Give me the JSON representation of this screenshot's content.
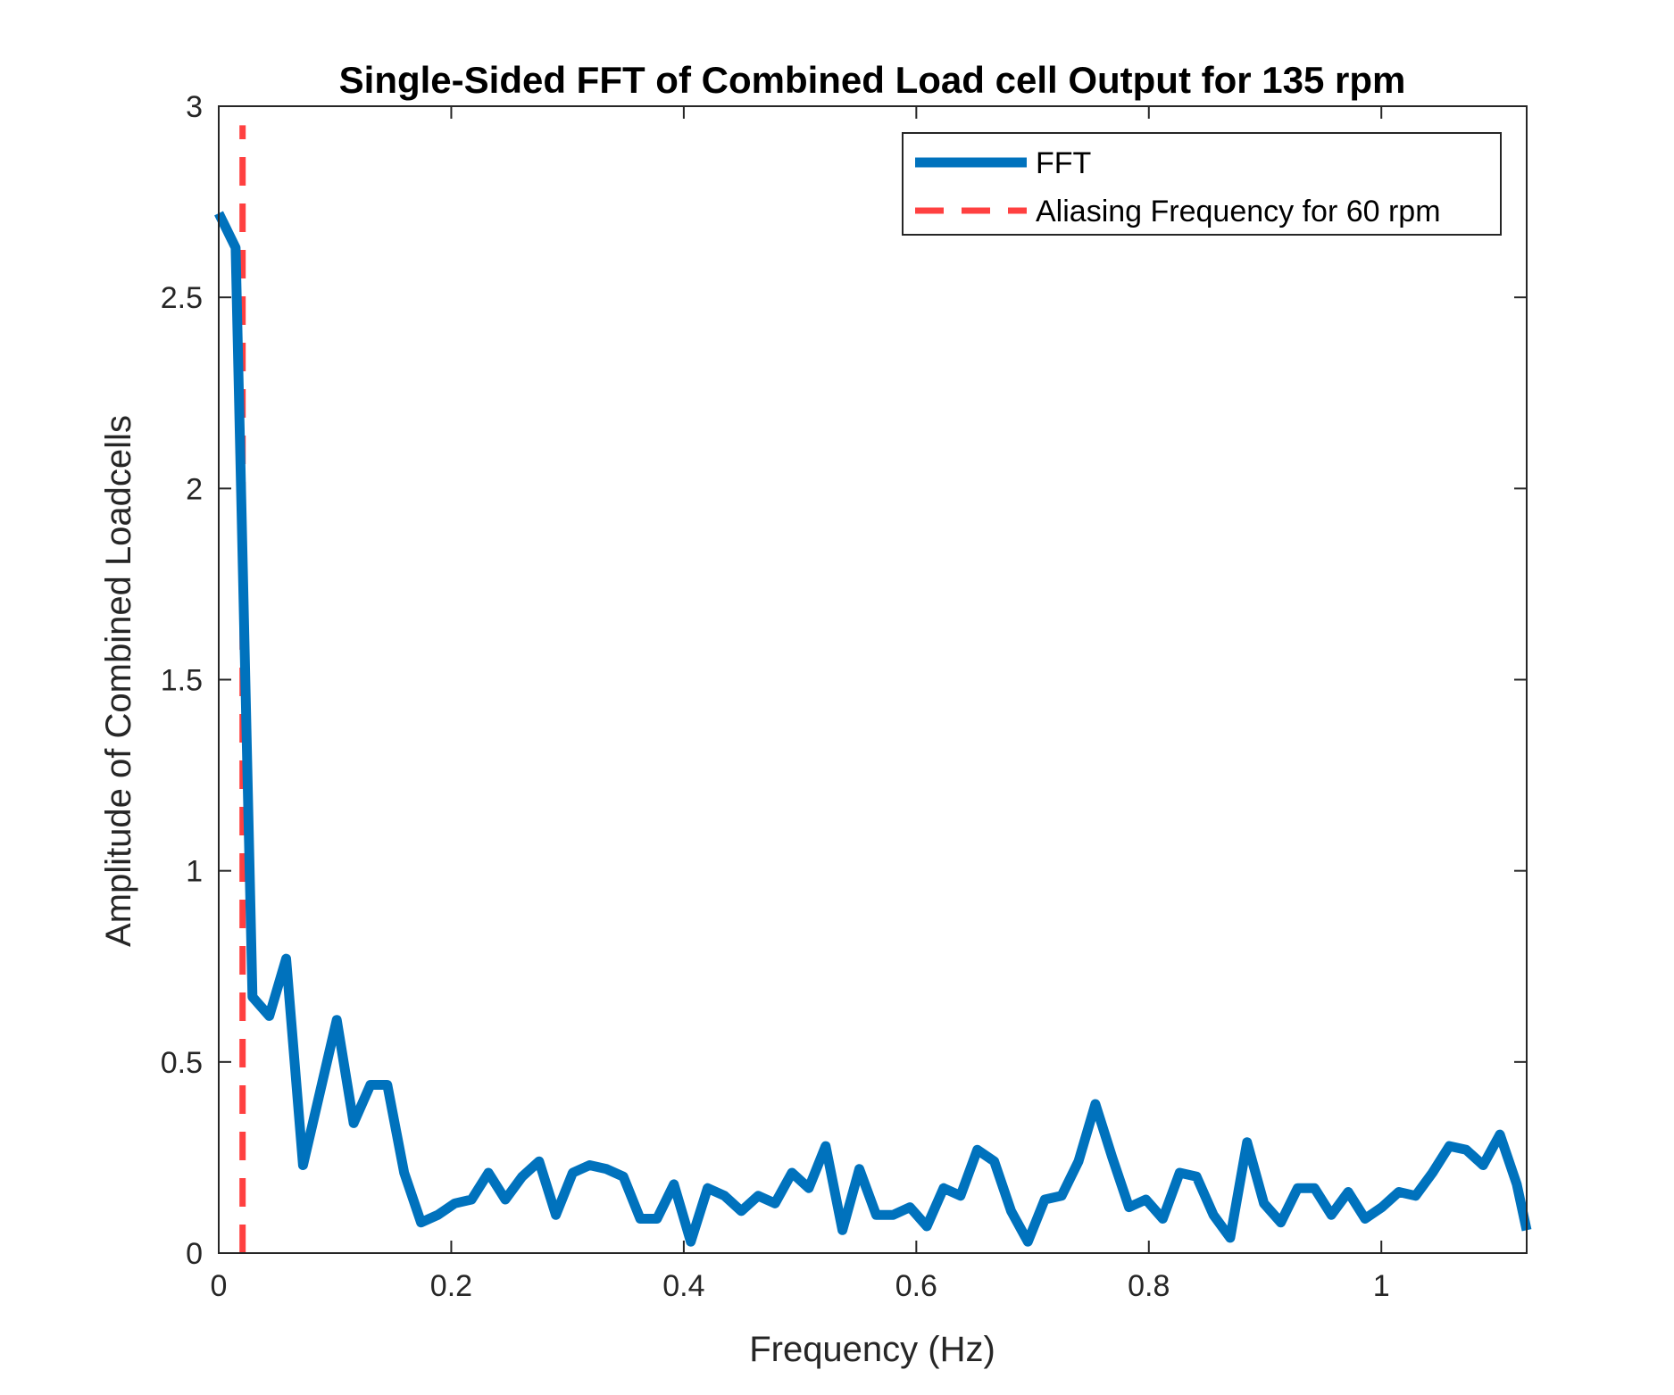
{
  "chart_data": {
    "type": "line",
    "title": "Single-Sided FFT of Combined Load cell Output for 135 rpm",
    "xlabel": "Frequency (Hz)",
    "ylabel": "Amplitude of Combined Loadcells",
    "xlim": [
      0,
      1.125
    ],
    "ylim": [
      0,
      3
    ],
    "xticks": [
      0,
      0.2,
      0.4,
      0.6,
      0.8,
      1
    ],
    "xtick_labels": [
      "0",
      "0.2",
      "0.4",
      "0.6",
      "0.8",
      "1"
    ],
    "yticks": [
      0,
      0.5,
      1,
      1.5,
      2,
      2.5,
      3
    ],
    "ytick_labels": [
      "0",
      "0.5",
      "1",
      "1.5",
      "2",
      "2.5",
      "3"
    ],
    "grid": false,
    "legend_position": "top-right",
    "series": [
      {
        "name": "FFT",
        "style": "solid",
        "color": "#0072BD",
        "x": [
          0,
          0.0145,
          0.029,
          0.0435,
          0.058,
          0.0725,
          0.087,
          0.1015,
          0.116,
          0.1305,
          0.145,
          0.1595,
          0.174,
          0.1885,
          0.203,
          0.2175,
          0.232,
          0.2465,
          0.261,
          0.2755,
          0.29,
          0.3045,
          0.319,
          0.3335,
          0.348,
          0.3625,
          0.377,
          0.3915,
          0.406,
          0.4205,
          0.435,
          0.4495,
          0.464,
          0.4785,
          0.493,
          0.5075,
          0.522,
          0.5365,
          0.551,
          0.5655,
          0.58,
          0.5945,
          0.609,
          0.6235,
          0.638,
          0.6525,
          0.667,
          0.6815,
          0.696,
          0.7105,
          0.725,
          0.7395,
          0.754,
          0.7685,
          0.783,
          0.7975,
          0.812,
          0.8265,
          0.841,
          0.8555,
          0.87,
          0.8845,
          0.899,
          0.9135,
          0.928,
          0.9425,
          0.957,
          0.9715,
          0.986,
          1.0005,
          1.015,
          1.0295,
          1.044,
          1.0585,
          1.073,
          1.0875,
          1.102,
          1.1165,
          1.125
        ],
        "y": [
          2.72,
          2.63,
          0.67,
          0.62,
          0.77,
          0.23,
          0.42,
          0.61,
          0.34,
          0.44,
          0.44,
          0.21,
          0.08,
          0.1,
          0.13,
          0.14,
          0.21,
          0.14,
          0.2,
          0.24,
          0.1,
          0.21,
          0.23,
          0.22,
          0.2,
          0.09,
          0.09,
          0.18,
          0.03,
          0.17,
          0.15,
          0.11,
          0.15,
          0.13,
          0.21,
          0.17,
          0.28,
          0.06,
          0.22,
          0.1,
          0.1,
          0.12,
          0.07,
          0.17,
          0.15,
          0.27,
          0.24,
          0.11,
          0.03,
          0.14,
          0.15,
          0.24,
          0.39,
          0.25,
          0.12,
          0.14,
          0.09,
          0.21,
          0.2,
          0.1,
          0.04,
          0.29,
          0.13,
          0.08,
          0.17,
          0.17,
          0.1,
          0.16,
          0.09,
          0.12,
          0.16,
          0.15,
          0.21,
          0.28,
          0.27,
          0.23,
          0.31,
          0.18,
          0.06
        ]
      },
      {
        "name": "Aliasing Frequency for 60 rpm",
        "style": "dashed",
        "color": "#FF4040",
        "x": [
          0.0205,
          0.0205
        ],
        "y": [
          0,
          2.95
        ]
      }
    ]
  }
}
